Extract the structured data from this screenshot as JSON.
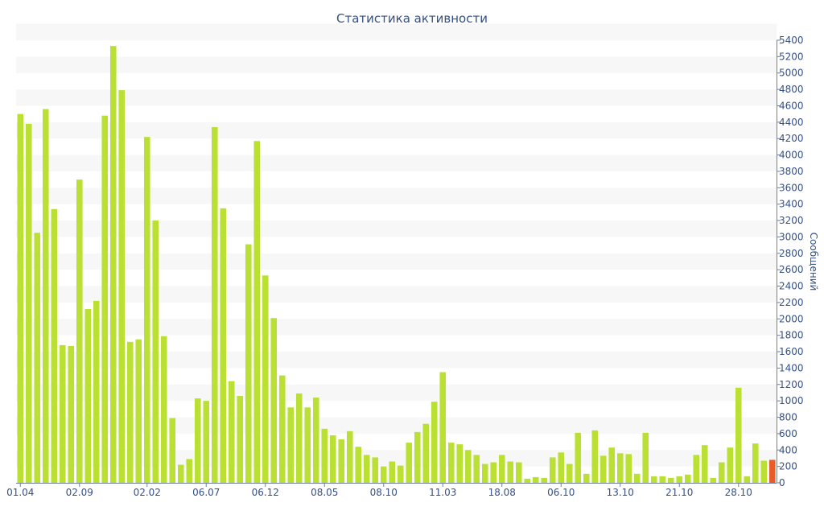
{
  "chart_data": {
    "type": "bar",
    "title": "Статистика активности",
    "ylabel": "Сообщений",
    "xlabel": "",
    "ylim": [
      0,
      5400
    ],
    "y_ticks": [
      0,
      200,
      400,
      600,
      800,
      1000,
      1200,
      1400,
      1600,
      1800,
      2000,
      2200,
      2400,
      2600,
      2800,
      3000,
      3200,
      3400,
      3600,
      3800,
      4000,
      4200,
      4400,
      4600,
      4800,
      5000,
      5200,
      5400
    ],
    "y_axis_position": "right",
    "x_tick_labels": [
      {
        "index": 0,
        "label": "01.04"
      },
      {
        "index": 7,
        "label": "02.09"
      },
      {
        "index": 15,
        "label": "02.02"
      },
      {
        "index": 22,
        "label": "06.07"
      },
      {
        "index": 29,
        "label": "06.12"
      },
      {
        "index": 36,
        "label": "08.05"
      },
      {
        "index": 43,
        "label": "08.10"
      },
      {
        "index": 50,
        "label": "11.03"
      },
      {
        "index": 57,
        "label": "18.08"
      },
      {
        "index": 64,
        "label": "06.10"
      },
      {
        "index": 71,
        "label": "13.10"
      },
      {
        "index": 78,
        "label": "21.10"
      },
      {
        "index": 85,
        "label": "28.10"
      }
    ],
    "values": [
      4500,
      4380,
      3050,
      4560,
      3340,
      1680,
      1670,
      3700,
      2120,
      2220,
      4480,
      5330,
      4790,
      1720,
      1750,
      4220,
      3200,
      1790,
      790,
      220,
      290,
      1030,
      1000,
      4340,
      3350,
      1240,
      1060,
      2910,
      4170,
      2530,
      2010,
      1310,
      920,
      1090,
      920,
      1040,
      660,
      580,
      530,
      630,
      440,
      340,
      310,
      200,
      260,
      210,
      490,
      620,
      720,
      990,
      1350,
      490,
      470,
      400,
      340,
      230,
      250,
      340,
      260,
      250,
      50,
      70,
      60,
      310,
      370,
      230,
      610,
      110,
      640,
      330,
      430,
      360,
      350,
      110,
      610,
      80,
      80,
      60,
      80,
      100,
      340,
      460,
      60,
      250,
      430,
      1160,
      80,
      480,
      270,
      280
    ],
    "bar_color": "#b9e032",
    "highlight_color": "#e65c2b",
    "highlight_index": 89,
    "grid": "horizontal bands",
    "band_color": "#f7f7f7",
    "text_color": "#34508a"
  }
}
